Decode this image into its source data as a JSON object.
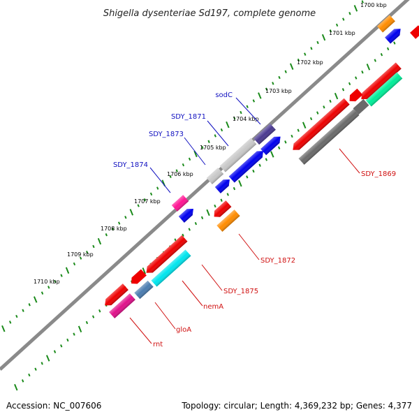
{
  "title": "Shigella dysenteriae Sd197, complete genome",
  "footer": {
    "accession": "Accession: NC_007606",
    "summary": "Topology: circular; Length: 4,369,232 bp; Genes: 4,377"
  },
  "colors": {
    "backbone": "#8a8a8a",
    "tick": "#1a8a1a",
    "forward_label": "#1010c0",
    "reverse_label": "#d01010"
  },
  "kbp_labels": [
    "1700 kbp",
    "1701 kbp",
    "1702 kbp",
    "1703 kbp",
    "1704 kbp",
    "1705 kbp",
    "1706 kbp",
    "1707 kbp",
    "1708 kbp",
    "1709 kbp",
    "1710 kbp"
  ],
  "forward_gene_labels": [
    "sodC",
    "SDY_1871",
    "SDY_1873",
    "SDY_1874"
  ],
  "reverse_gene_labels": [
    "SDY_1869",
    "SDY_1872",
    "SDY_1875",
    "nemA",
    "gloA",
    "rnt"
  ]
}
